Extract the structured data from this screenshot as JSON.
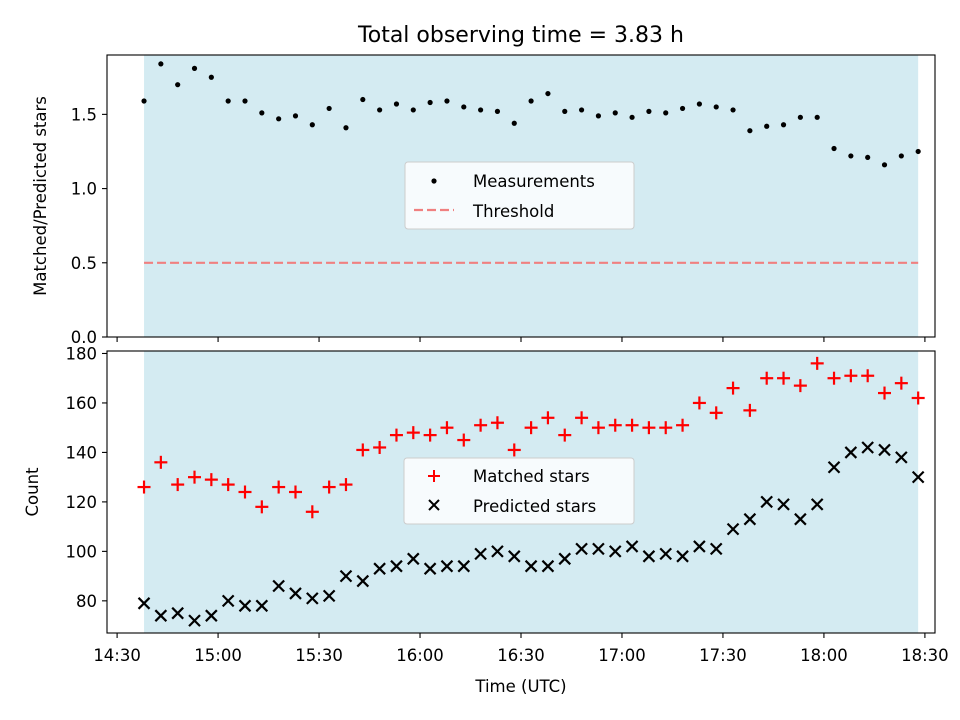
{
  "chart_data": [
    {
      "type": "scatter",
      "title": "Total observing time = 3.83 h",
      "xlabel": "",
      "ylabel": "Matched/Predicted stars",
      "xlim": [
        "14:27",
        "18:33"
      ],
      "ylim": [
        0,
        1.9
      ],
      "yticks": [
        0.0,
        0.5,
        1.0,
        1.5
      ],
      "ytick_labels": [
        "0.0",
        "0.5",
        "1.0",
        "1.5"
      ],
      "xticks": [
        "14:30",
        "15:00",
        "15:30",
        "16:00",
        "16:30",
        "17:00",
        "17:30",
        "18:00",
        "18:30"
      ],
      "shaded_span": [
        "14:38",
        "18:28"
      ],
      "shade_color": "#add8e6",
      "grid": false,
      "legend_position": "center",
      "series": [
        {
          "name": "Measurements",
          "marker": "dot",
          "color": "#000000",
          "x": [
            "14:38",
            "14:43",
            "14:48",
            "14:53",
            "14:58",
            "15:03",
            "15:08",
            "15:13",
            "15:18",
            "15:23",
            "15:28",
            "15:33",
            "15:38",
            "15:43",
            "15:48",
            "15:53",
            "15:58",
            "16:03",
            "16:08",
            "16:13",
            "16:18",
            "16:23",
            "16:28",
            "16:33",
            "16:38",
            "16:43",
            "16:48",
            "16:53",
            "16:58",
            "17:03",
            "17:08",
            "17:13",
            "17:18",
            "17:23",
            "17:28",
            "17:33",
            "17:38",
            "17:43",
            "17:48",
            "17:53",
            "17:58",
            "18:03",
            "18:08",
            "18:13",
            "18:18",
            "18:23",
            "18:28"
          ],
          "values": [
            1.59,
            1.84,
            1.7,
            1.81,
            1.75,
            1.59,
            1.59,
            1.51,
            1.47,
            1.49,
            1.43,
            1.54,
            1.41,
            1.6,
            1.53,
            1.57,
            1.53,
            1.58,
            1.59,
            1.55,
            1.53,
            1.52,
            1.44,
            1.59,
            1.64,
            1.52,
            1.53,
            1.49,
            1.51,
            1.48,
            1.52,
            1.51,
            1.54,
            1.57,
            1.55,
            1.53,
            1.39,
            1.42,
            1.43,
            1.48,
            1.48,
            1.27,
            1.22,
            1.21,
            1.16,
            1.22,
            1.25
          ]
        },
        {
          "name": "Threshold",
          "style": "dashed",
          "color": "#f08080",
          "x": [
            "14:38",
            "18:28"
          ],
          "values": [
            0.5,
            0.5
          ]
        }
      ]
    },
    {
      "type": "scatter",
      "title": "",
      "xlabel": "Time (UTC)",
      "ylabel": "Count",
      "xlim": [
        "14:27",
        "18:33"
      ],
      "ylim": [
        67,
        181
      ],
      "yticks": [
        80,
        100,
        120,
        140,
        160,
        180
      ],
      "ytick_labels": [
        "80",
        "100",
        "120",
        "140",
        "160",
        "180"
      ],
      "xticks": [
        "14:30",
        "15:00",
        "15:30",
        "16:00",
        "16:30",
        "17:00",
        "17:30",
        "18:00",
        "18:30"
      ],
      "xtick_labels": [
        "14:30",
        "15:00",
        "15:30",
        "16:00",
        "16:30",
        "17:00",
        "17:30",
        "18:00",
        "18:30"
      ],
      "shaded_span": [
        "14:38",
        "18:28"
      ],
      "shade_color": "#add8e6",
      "grid": false,
      "legend_position": "center",
      "series": [
        {
          "name": "Matched stars",
          "marker": "plus",
          "color": "#ff0000",
          "x": [
            "14:38",
            "14:43",
            "14:48",
            "14:53",
            "14:58",
            "15:03",
            "15:08",
            "15:13",
            "15:18",
            "15:23",
            "15:28",
            "15:33",
            "15:38",
            "15:43",
            "15:48",
            "15:53",
            "15:58",
            "16:03",
            "16:08",
            "16:13",
            "16:18",
            "16:23",
            "16:28",
            "16:33",
            "16:38",
            "16:43",
            "16:48",
            "16:53",
            "16:58",
            "17:03",
            "17:08",
            "17:13",
            "17:18",
            "17:23",
            "17:28",
            "17:33",
            "17:38",
            "17:43",
            "17:48",
            "17:53",
            "17:58",
            "18:03",
            "18:08",
            "18:13",
            "18:18",
            "18:23",
            "18:28"
          ],
          "values": [
            126,
            136,
            127,
            130,
            129,
            127,
            124,
            118,
            126,
            124,
            116,
            126,
            127,
            141,
            142,
            147,
            148,
            147,
            150,
            145,
            151,
            152,
            141,
            150,
            154,
            147,
            154,
            150,
            151,
            151,
            150,
            150,
            151,
            160,
            156,
            166,
            157,
            170,
            170,
            167,
            176,
            170,
            171,
            171,
            164,
            168,
            162
          ]
        },
        {
          "name": "Predicted stars",
          "marker": "x",
          "color": "#000000",
          "x": [
            "14:38",
            "14:43",
            "14:48",
            "14:53",
            "14:58",
            "15:03",
            "15:08",
            "15:13",
            "15:18",
            "15:23",
            "15:28",
            "15:33",
            "15:38",
            "15:43",
            "15:48",
            "15:53",
            "15:58",
            "16:03",
            "16:08",
            "16:13",
            "16:18",
            "16:23",
            "16:28",
            "16:33",
            "16:38",
            "16:43",
            "16:48",
            "16:53",
            "16:58",
            "17:03",
            "17:08",
            "17:13",
            "17:18",
            "17:23",
            "17:28",
            "17:33",
            "17:38",
            "17:43",
            "17:48",
            "17:53",
            "17:58",
            "18:03",
            "18:08",
            "18:13",
            "18:18",
            "18:23",
            "18:28"
          ],
          "values": [
            79,
            74,
            75,
            72,
            74,
            80,
            78,
            78,
            86,
            83,
            81,
            82,
            90,
            88,
            93,
            94,
            97,
            93,
            94,
            94,
            99,
            100,
            98,
            94,
            94,
            97,
            101,
            101,
            100,
            102,
            98,
            99,
            98,
            102,
            101,
            109,
            113,
            120,
            119,
            113,
            119,
            134,
            140,
            142,
            141,
            138,
            130
          ]
        }
      ]
    }
  ]
}
